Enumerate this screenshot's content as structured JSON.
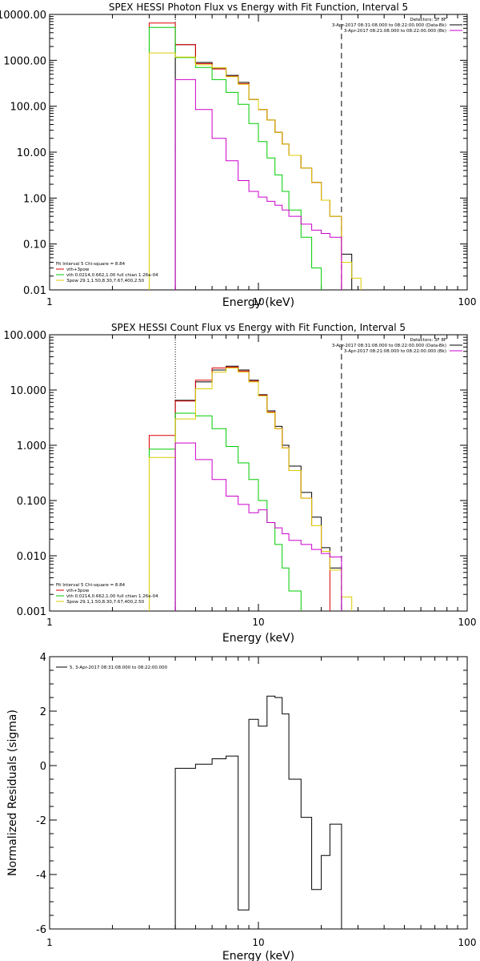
{
  "chart_data": [
    {
      "type": "line",
      "title": "SPEX HESSI Photon Flux vs Energy with Fit Function, Interval 5",
      "xlabel": "Energy (keV)",
      "ylabel": "",
      "xscale": "log",
      "yscale": "log",
      "xlim": [
        1,
        100
      ],
      "ylim": [
        0.01,
        10000
      ],
      "x_ticks": [
        {
          "v": 1,
          "label": "1"
        },
        {
          "v": 10,
          "label": "10"
        },
        {
          "v": 100,
          "label": "100"
        }
      ],
      "y_ticks": [
        {
          "v": 10000,
          "label": "10000.00"
        },
        {
          "v": 1000,
          "label": "1000.00"
        },
        {
          "v": 100,
          "label": "100.00"
        },
        {
          "v": 10,
          "label": "10.00"
        },
        {
          "v": 1,
          "label": "1.00"
        },
        {
          "v": 0.1,
          "label": "0.10"
        },
        {
          "v": 0.01,
          "label": "0.01"
        }
      ],
      "vlines": [
        {
          "x": 4.0,
          "style": "dotted",
          "color": "#000000"
        },
        {
          "x": 25.0,
          "style": "dashed",
          "color": "#000000"
        }
      ],
      "edges": [
        3.0,
        4.0,
        5.0,
        6.0,
        7.0,
        8.0,
        9.0,
        10.0,
        11.0,
        12.0,
        13.0,
        14.0,
        16.0,
        18.0,
        20.0,
        22.0,
        25.0,
        28.0,
        31.0
      ],
      "legend_right": {
        "position": "top-right",
        "header": "Detectors: 3F 8F",
        "lines": [
          {
            "text": "3-Apr-2017 08:31:08.000 to 08:22:00.000 (Data-Bk)",
            "color": "#000000"
          },
          {
            "text": "3-Apr-2017 08:21:08.000 to 08:22:00.000 (Bk)",
            "color": "#cc00cc"
          }
        ]
      },
      "legend_left": {
        "position": "bottom-left",
        "header": "Fit Interval 5   Chi-square = 8.84",
        "lines": [
          {
            "text": "vth+3pow",
            "color": "#dd0000"
          },
          {
            "text": "vth 0.0214,0.662,1.00  full chian 1.26e-04",
            "color": "#00cc00"
          },
          {
            "text": "3pow 29.1,1.50,8.30,7.67,400,2.50",
            "color": "#ddcc00"
          }
        ]
      },
      "series": [
        {
          "color": "#000000",
          "values": [
            null,
            2200,
            900,
            680,
            470,
            330,
            140,
            85,
            50,
            27,
            15,
            8.5,
            4.5,
            2.2,
            0.9,
            0.4,
            0.06,
            null
          ]
        },
        {
          "color": "#dd0000",
          "values": [
            6500,
            2200,
            850,
            650,
            450,
            310,
            140,
            85,
            50,
            27,
            15,
            8.5,
            4.5,
            2.2,
            0.9,
            0.4,
            null,
            null
          ]
        },
        {
          "color": "#00cc00",
          "values": [
            5200,
            1150,
            700,
            380,
            200,
            110,
            42,
            17,
            7.5,
            3.2,
            1.4,
            0.55,
            0.14,
            0.03,
            0.01,
            null,
            null,
            null
          ]
        },
        {
          "color": "#ddcc00",
          "values": [
            1450,
            1180,
            800,
            690,
            440,
            300,
            140,
            85,
            50,
            27,
            15,
            8.5,
            4.5,
            2.2,
            0.9,
            0.4,
            0.04,
            0.018
          ]
        },
        {
          "color": "#cc00cc",
          "values": [
            null,
            380,
            85,
            20,
            6.5,
            2.4,
            1.4,
            1.05,
            0.85,
            0.7,
            0.55,
            0.4,
            0.27,
            0.2,
            0.17,
            0.14,
            null,
            null
          ]
        }
      ]
    },
    {
      "type": "line",
      "title": "SPEX HESSI Count Flux vs Energy with Fit Function, Interval 5",
      "xlabel": "Energy (keV)",
      "ylabel": "",
      "xscale": "log",
      "yscale": "log",
      "xlim": [
        1,
        100
      ],
      "ylim": [
        0.001,
        100
      ],
      "x_ticks": [
        {
          "v": 1,
          "label": "1"
        },
        {
          "v": 10,
          "label": "10"
        },
        {
          "v": 100,
          "label": "100"
        }
      ],
      "y_ticks": [
        {
          "v": 100,
          "label": "100.000"
        },
        {
          "v": 10,
          "label": "10.000"
        },
        {
          "v": 1,
          "label": "1.000"
        },
        {
          "v": 0.1,
          "label": "0.100"
        },
        {
          "v": 0.01,
          "label": "0.010"
        },
        {
          "v": 0.001,
          "label": "0.001"
        }
      ],
      "vlines": [
        {
          "x": 4.0,
          "style": "dotted",
          "color": "#000000"
        },
        {
          "x": 25.0,
          "style": "dashed",
          "color": "#000000"
        }
      ],
      "edges": [
        3.0,
        4.0,
        5.0,
        6.0,
        7.0,
        8.0,
        9.0,
        10.0,
        11.0,
        12.0,
        13.0,
        14.0,
        16.0,
        18.0,
        20.0,
        22.0,
        25.0,
        28.0,
        31.0
      ],
      "legend_right": {
        "position": "top-right",
        "header": "Detectors: 3F 8F",
        "lines": [
          {
            "text": "3-Apr-2017 08:31:08.000 to 08:22:00.000 (Data-Bk)",
            "color": "#000000"
          },
          {
            "text": "3-Apr-2017 08:21:08.000 to 08:22:00.000 (Bk)",
            "color": "#cc00cc"
          }
        ]
      },
      "legend_left": {
        "position": "bottom-left",
        "header": "Fit Interval 5   Chi-square = 8.84",
        "lines": [
          {
            "text": "vth+3pow",
            "color": "#dd0000"
          },
          {
            "text": "vth 0.0214,0.662,1.00  full chian 1.26e-04",
            "color": "#00cc00"
          },
          {
            "text": "3pow 29.1,1.50,8.30,7.67,400,2.50",
            "color": "#ddcc00"
          }
        ]
      },
      "series": [
        {
          "color": "#000000",
          "values": [
            null,
            6.5,
            14,
            23,
            27,
            23,
            15,
            8.2,
            4.2,
            2.2,
            1.0,
            0.42,
            0.14,
            0.05,
            0.014,
            0.006,
            null,
            null
          ]
        },
        {
          "color": "#dd0000",
          "values": [
            1.5,
            6.3,
            15,
            25,
            26,
            22,
            14.5,
            8.0,
            4.0,
            2.0,
            0.9,
            0.35,
            0.11,
            0.035,
            0.012,
            null,
            null,
            null
          ]
        },
        {
          "color": "#00cc00",
          "values": [
            0.85,
            3.8,
            3.4,
            2.0,
            0.95,
            0.48,
            0.24,
            0.1,
            0.04,
            0.016,
            0.006,
            0.0023,
            null,
            null,
            null,
            null,
            null,
            null
          ]
        },
        {
          "color": "#ddcc00",
          "values": [
            0.6,
            3.0,
            10.5,
            21,
            25,
            21,
            14,
            7.8,
            3.9,
            2.0,
            0.9,
            0.35,
            0.11,
            0.035,
            0.012,
            0.0055,
            0.0018,
            0.001
          ]
        },
        {
          "color": "#cc00cc",
          "values": [
            null,
            1.1,
            0.55,
            0.24,
            0.12,
            0.085,
            0.06,
            0.068,
            0.04,
            0.032,
            0.025,
            0.019,
            0.016,
            0.013,
            0.011,
            0.0095,
            null,
            null
          ]
        }
      ]
    },
    {
      "type": "line",
      "title": "",
      "xlabel": "Energy (keV)",
      "ylabel": "Normalized Residuals (sigma)",
      "xscale": "log",
      "yscale": "linear",
      "xlim": [
        1,
        100
      ],
      "ylim": [
        -6,
        4
      ],
      "x_ticks": [
        {
          "v": 1,
          "label": "1"
        },
        {
          "v": 10,
          "label": "10"
        },
        {
          "v": 100,
          "label": "100"
        }
      ],
      "y_ticks": [
        {
          "v": 4,
          "label": "4"
        },
        {
          "v": 2,
          "label": "2"
        },
        {
          "v": 0,
          "label": "0"
        },
        {
          "v": -2,
          "label": "-2"
        },
        {
          "v": -4,
          "label": "-4"
        },
        {
          "v": -6,
          "label": "-6"
        }
      ],
      "vlines": [],
      "edges": [
        4.0,
        5.0,
        6.0,
        7.0,
        8.0,
        9.0,
        10.0,
        11.0,
        12.0,
        13.0,
        14.0,
        16.0,
        18.0,
        20.0,
        22.0,
        25.0
      ],
      "legend_top": {
        "position": "top-left",
        "lines": [
          {
            "text": "5, 3-Apr-2017 08:31:08.000 to 08:22:00.000",
            "color": "#000000"
          }
        ]
      },
      "series": [
        {
          "color": "#000000",
          "values": [
            -0.1,
            0.05,
            0.25,
            0.35,
            -5.3,
            1.7,
            1.45,
            2.55,
            2.5,
            1.9,
            -0.5,
            -1.9,
            -4.55,
            -3.3,
            -2.15
          ]
        }
      ]
    }
  ]
}
